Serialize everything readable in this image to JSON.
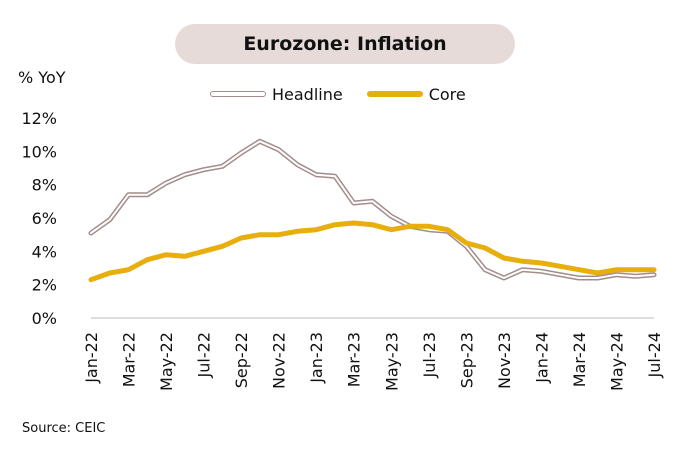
{
  "title": "Eurozone: Inflation",
  "unit_label": "% YoY",
  "source": "Source: CEIC",
  "colors": {
    "headline": "#a38c8c",
    "core": "#e8ae0c",
    "title_bg": "#e6dbd8"
  },
  "chart_data": {
    "type": "line",
    "title": "Eurozone: Inflation",
    "ylabel": "% YoY",
    "ylim": [
      0,
      12
    ],
    "y_ticks": [
      "0%",
      "2%",
      "4%",
      "6%",
      "8%",
      "10%",
      "12%"
    ],
    "x": [
      "Jan-22",
      "Feb-22",
      "Mar-22",
      "Apr-22",
      "May-22",
      "Jun-22",
      "Jul-22",
      "Aug-22",
      "Sep-22",
      "Oct-22",
      "Nov-22",
      "Dec-22",
      "Jan-23",
      "Feb-23",
      "Mar-23",
      "Apr-23",
      "May-23",
      "Jun-23",
      "Jul-23",
      "Aug-23",
      "Sep-23",
      "Oct-23",
      "Nov-23",
      "Dec-23",
      "Jan-24",
      "Feb-24",
      "Mar-24",
      "Apr-24",
      "May-24",
      "Jun-24",
      "Jul-24"
    ],
    "x_tick_labels": [
      "Jan-22",
      "Mar-22",
      "May-22",
      "Jul-22",
      "Sep-22",
      "Nov-22",
      "Jan-23",
      "Mar-23",
      "May-23",
      "Jul-23",
      "Sep-23",
      "Nov-23",
      "Jan-24",
      "Mar-24",
      "May-24",
      "Jul-24"
    ],
    "grid": false,
    "legend_position": "top-center",
    "series": [
      {
        "name": "Headline",
        "style": "outlined",
        "values": [
          5.1,
          5.9,
          7.4,
          7.4,
          8.1,
          8.6,
          8.9,
          9.1,
          9.9,
          10.6,
          10.1,
          9.2,
          8.6,
          8.5,
          6.9,
          7.0,
          6.1,
          5.5,
          5.3,
          5.2,
          4.3,
          2.9,
          2.4,
          2.9,
          2.8,
          2.6,
          2.4,
          2.4,
          2.6,
          2.5,
          2.6
        ]
      },
      {
        "name": "Core",
        "style": "solid",
        "values": [
          2.3,
          2.7,
          2.9,
          3.5,
          3.8,
          3.7,
          4.0,
          4.3,
          4.8,
          5.0,
          5.0,
          5.2,
          5.3,
          5.6,
          5.7,
          5.6,
          5.3,
          5.5,
          5.5,
          5.3,
          4.5,
          4.2,
          3.6,
          3.4,
          3.3,
          3.1,
          2.9,
          2.7,
          2.9,
          2.9,
          2.9
        ]
      }
    ]
  }
}
